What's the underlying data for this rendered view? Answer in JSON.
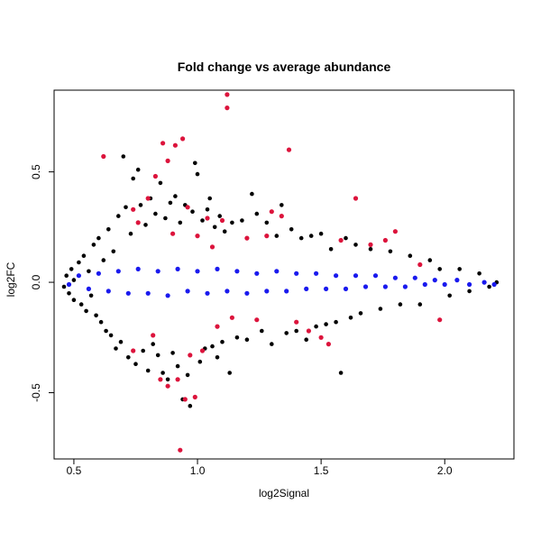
{
  "chart_data": {
    "type": "scatter",
    "title": "Fold change vs average abundance",
    "xlabel": "log2Signal",
    "ylabel": "log2FC",
    "xlim": [
      0.42,
      2.28
    ],
    "ylim": [
      -0.8,
      0.87
    ],
    "x_ticks": [
      0.5,
      1.0,
      1.5,
      2.0
    ],
    "x_tick_labels": [
      "0.5",
      "1.0",
      "1.5",
      "2.0"
    ],
    "y_ticks": [
      -0.5,
      0.0,
      0.5
    ],
    "y_tick_labels": [
      "-0.5",
      "0.0",
      "0.5"
    ],
    "grid": false,
    "legend": "none",
    "colors": {
      "black": "#000000",
      "blue": "#1a1aee",
      "red": "#dc143c"
    },
    "series": [
      {
        "color": "black",
        "points": [
          [
            0.46,
            -0.02
          ],
          [
            0.47,
            0.03
          ],
          [
            0.48,
            -0.05
          ],
          [
            0.49,
            0.06
          ],
          [
            0.5,
            -0.08
          ],
          [
            0.5,
            0.01
          ],
          [
            0.52,
            0.09
          ],
          [
            0.53,
            -0.1
          ],
          [
            0.54,
            0.12
          ],
          [
            0.55,
            -0.13
          ],
          [
            0.56,
            0.05
          ],
          [
            0.57,
            -0.06
          ],
          [
            0.58,
            0.17
          ],
          [
            0.59,
            -0.15
          ],
          [
            0.6,
            0.2
          ],
          [
            0.61,
            -0.18
          ],
          [
            0.62,
            0.1
          ],
          [
            0.63,
            -0.22
          ],
          [
            0.64,
            0.24
          ],
          [
            0.65,
            -0.24
          ],
          [
            0.66,
            0.14
          ],
          [
            0.67,
            -0.3
          ],
          [
            0.68,
            0.3
          ],
          [
            0.69,
            -0.27
          ],
          [
            0.7,
            0.57
          ],
          [
            0.71,
            0.34
          ],
          [
            0.72,
            -0.34
          ],
          [
            0.73,
            0.22
          ],
          [
            0.74,
            0.47
          ],
          [
            0.75,
            -0.37
          ],
          [
            0.76,
            0.51
          ],
          [
            0.77,
            0.35
          ],
          [
            0.78,
            -0.31
          ],
          [
            0.79,
            0.26
          ],
          [
            0.8,
            -0.4
          ],
          [
            0.81,
            0.38
          ],
          [
            0.82,
            -0.28
          ],
          [
            0.83,
            0.31
          ],
          [
            0.84,
            -0.33
          ],
          [
            0.85,
            0.45
          ],
          [
            0.86,
            -0.41
          ],
          [
            0.87,
            0.29
          ],
          [
            0.88,
            -0.44
          ],
          [
            0.89,
            0.36
          ],
          [
            0.9,
            -0.32
          ],
          [
            0.91,
            0.39
          ],
          [
            0.92,
            -0.38
          ],
          [
            0.93,
            0.27
          ],
          [
            0.94,
            -0.53
          ],
          [
            0.95,
            0.35
          ],
          [
            0.96,
            -0.42
          ],
          [
            0.97,
            -0.56
          ],
          [
            0.98,
            0.32
          ],
          [
            0.99,
            0.54
          ],
          [
            1.0,
            0.49
          ],
          [
            1.01,
            -0.36
          ],
          [
            1.02,
            0.28
          ],
          [
            1.03,
            -0.3
          ],
          [
            1.04,
            0.33
          ],
          [
            1.05,
            0.38
          ],
          [
            1.06,
            -0.29
          ],
          [
            1.07,
            0.25
          ],
          [
            1.08,
            -0.34
          ],
          [
            1.09,
            0.3
          ],
          [
            1.1,
            -0.27
          ],
          [
            1.11,
            0.23
          ],
          [
            1.13,
            -0.41
          ],
          [
            1.14,
            0.27
          ],
          [
            1.16,
            -0.25
          ],
          [
            1.18,
            0.28
          ],
          [
            1.2,
            -0.26
          ],
          [
            1.22,
            0.4
          ],
          [
            1.24,
            0.31
          ],
          [
            1.26,
            -0.22
          ],
          [
            1.28,
            0.27
          ],
          [
            1.3,
            -0.28
          ],
          [
            1.32,
            0.21
          ],
          [
            1.34,
            0.35
          ],
          [
            1.36,
            -0.23
          ],
          [
            1.38,
            0.24
          ],
          [
            1.4,
            -0.22
          ],
          [
            1.42,
            0.2
          ],
          [
            1.44,
            -0.26
          ],
          [
            1.46,
            0.21
          ],
          [
            1.48,
            -0.2
          ],
          [
            1.5,
            0.22
          ],
          [
            1.52,
            -0.19
          ],
          [
            1.54,
            0.15
          ],
          [
            1.56,
            -0.18
          ],
          [
            1.58,
            -0.41
          ],
          [
            1.6,
            0.2
          ],
          [
            1.62,
            -0.16
          ],
          [
            1.64,
            0.17
          ],
          [
            1.66,
            -0.14
          ],
          [
            1.7,
            0.15
          ],
          [
            1.74,
            -0.12
          ],
          [
            1.78,
            0.14
          ],
          [
            1.82,
            -0.1
          ],
          [
            1.86,
            0.12
          ],
          [
            1.9,
            -0.1
          ],
          [
            1.94,
            0.1
          ],
          [
            1.98,
            0.06
          ],
          [
            2.02,
            -0.06
          ],
          [
            2.06,
            0.06
          ],
          [
            2.1,
            -0.04
          ],
          [
            2.14,
            0.04
          ],
          [
            2.18,
            -0.02
          ],
          [
            2.21,
            0.0
          ]
        ]
      },
      {
        "color": "blue",
        "points": [
          [
            0.48,
            -0.01
          ],
          [
            0.52,
            0.03
          ],
          [
            0.56,
            -0.03
          ],
          [
            0.6,
            0.04
          ],
          [
            0.64,
            -0.04
          ],
          [
            0.68,
            0.05
          ],
          [
            0.72,
            -0.05
          ],
          [
            0.76,
            0.06
          ],
          [
            0.8,
            -0.05
          ],
          [
            0.84,
            0.05
          ],
          [
            0.88,
            -0.06
          ],
          [
            0.92,
            0.06
          ],
          [
            0.96,
            -0.04
          ],
          [
            1.0,
            0.05
          ],
          [
            1.04,
            -0.05
          ],
          [
            1.08,
            0.06
          ],
          [
            1.12,
            -0.04
          ],
          [
            1.16,
            0.05
          ],
          [
            1.2,
            -0.05
          ],
          [
            1.24,
            0.04
          ],
          [
            1.28,
            -0.04
          ],
          [
            1.32,
            0.05
          ],
          [
            1.36,
            -0.04
          ],
          [
            1.4,
            0.04
          ],
          [
            1.44,
            -0.03
          ],
          [
            1.48,
            0.04
          ],
          [
            1.52,
            -0.03
          ],
          [
            1.56,
            0.03
          ],
          [
            1.6,
            -0.03
          ],
          [
            1.64,
            0.03
          ],
          [
            1.68,
            -0.02
          ],
          [
            1.72,
            0.03
          ],
          [
            1.76,
            -0.02
          ],
          [
            1.8,
            0.02
          ],
          [
            1.84,
            -0.02
          ],
          [
            1.88,
            0.02
          ],
          [
            1.92,
            -0.01
          ],
          [
            1.96,
            0.01
          ],
          [
            2.0,
            -0.01
          ],
          [
            2.05,
            0.01
          ],
          [
            2.1,
            -0.01
          ],
          [
            2.16,
            0.0
          ],
          [
            2.2,
            -0.01
          ]
        ]
      },
      {
        "color": "red",
        "points": [
          [
            0.62,
            0.57
          ],
          [
            0.74,
            0.33
          ],
          [
            0.74,
            -0.31
          ],
          [
            0.76,
            0.27
          ],
          [
            0.8,
            0.38
          ],
          [
            0.82,
            -0.24
          ],
          [
            0.83,
            0.48
          ],
          [
            0.85,
            -0.44
          ],
          [
            0.86,
            0.63
          ],
          [
            0.88,
            0.55
          ],
          [
            0.88,
            -0.47
          ],
          [
            0.9,
            0.22
          ],
          [
            0.91,
            0.62
          ],
          [
            0.92,
            -0.44
          ],
          [
            0.93,
            -0.76
          ],
          [
            0.94,
            0.65
          ],
          [
            0.95,
            -0.53
          ],
          [
            0.96,
            0.34
          ],
          [
            0.97,
            -0.33
          ],
          [
            0.99,
            -0.52
          ],
          [
            1.0,
            0.21
          ],
          [
            1.02,
            -0.31
          ],
          [
            1.04,
            0.29
          ],
          [
            1.06,
            0.16
          ],
          [
            1.08,
            -0.2
          ],
          [
            1.1,
            0.28
          ],
          [
            1.12,
            0.85
          ],
          [
            1.12,
            0.79
          ],
          [
            1.14,
            -0.16
          ],
          [
            1.2,
            0.2
          ],
          [
            1.24,
            -0.17
          ],
          [
            1.28,
            0.21
          ],
          [
            1.3,
            0.32
          ],
          [
            1.34,
            0.3
          ],
          [
            1.37,
            0.6
          ],
          [
            1.4,
            -0.18
          ],
          [
            1.45,
            -0.22
          ],
          [
            1.5,
            -0.25
          ],
          [
            1.53,
            -0.28
          ],
          [
            1.58,
            0.19
          ],
          [
            1.64,
            0.38
          ],
          [
            1.7,
            0.17
          ],
          [
            1.76,
            0.19
          ],
          [
            1.8,
            0.23
          ],
          [
            1.9,
            0.08
          ],
          [
            1.98,
            -0.17
          ]
        ]
      }
    ]
  }
}
